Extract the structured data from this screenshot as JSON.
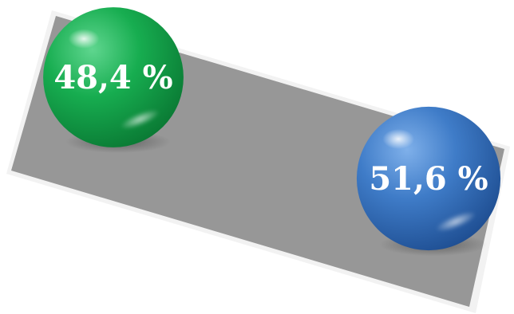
{
  "chart_data": {
    "type": "pie",
    "categories": [
      "",
      ""
    ],
    "values": [
      48.4,
      51.6
    ],
    "labels": [
      "48,4 %",
      "51,6 %"
    ],
    "colors": [
      "#14a84e",
      "#3d78c4"
    ],
    "panel_color": "#979797"
  }
}
